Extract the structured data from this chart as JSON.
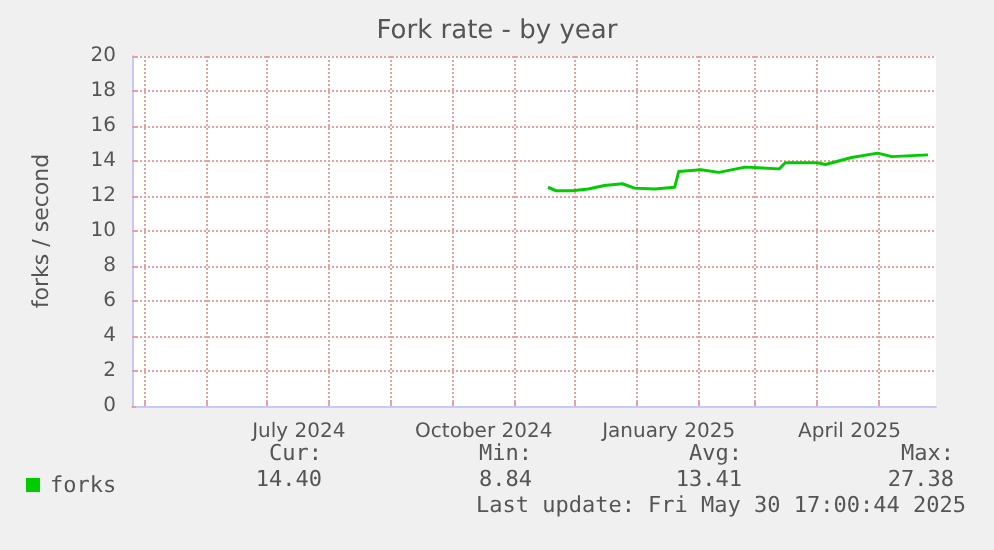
{
  "chart_data": {
    "type": "line",
    "title": "Fork rate - by year",
    "ylabel": "forks / second",
    "xlim": [
      "2024-04-25",
      "2025-05-30"
    ],
    "xticks": [
      {
        "value": "2024-05-01",
        "label": null
      },
      {
        "value": "2024-06-01",
        "label": null
      },
      {
        "value": "2024-07-01",
        "label": null
      },
      {
        "value": "2024-07-17",
        "label": "July 2024"
      },
      {
        "value": "2024-08-01",
        "label": null
      },
      {
        "value": "2024-09-01",
        "label": null
      },
      {
        "value": "2024-10-01",
        "label": null
      },
      {
        "value": "2024-10-17",
        "label": "October 2024"
      },
      {
        "value": "2024-11-01",
        "label": null
      },
      {
        "value": "2024-12-01",
        "label": null
      },
      {
        "value": "2025-01-01",
        "label": null
      },
      {
        "value": "2025-01-17",
        "label": "January 2025"
      },
      {
        "value": "2025-02-01",
        "label": null
      },
      {
        "value": "2025-03-01",
        "label": null
      },
      {
        "value": "2025-04-01",
        "label": null
      },
      {
        "value": "2025-04-17",
        "label": "April 2025"
      },
      {
        "value": "2025-05-01",
        "label": null
      }
    ],
    "ylim": [
      0,
      20
    ],
    "yticks": [
      0,
      2,
      4,
      6,
      8,
      10,
      12,
      14,
      16,
      18,
      20
    ],
    "grid": true,
    "legend": "bottom left",
    "marker": "none",
    "line_style": "solid",
    "series": [
      {
        "name": "forks",
        "color": "#00cc00",
        "x": [
          "2024-11-18",
          "2024-11-22",
          "2024-11-30",
          "2024-12-08",
          "2024-12-16",
          "2024-12-25",
          "2024-12-31",
          "2025-01-10",
          "2025-01-20",
          "2025-01-22",
          "2025-02-02",
          "2025-02-11",
          "2025-02-24",
          "2025-03-13",
          "2025-03-16",
          "2025-04-01",
          "2025-04-05",
          "2025-04-18",
          "2025-05-01",
          "2025-05-08",
          "2025-05-26"
        ],
        "values": [
          12.5,
          12.3,
          12.3,
          12.4,
          12.6,
          12.7,
          12.45,
          12.4,
          12.5,
          13.4,
          13.5,
          13.35,
          13.65,
          13.55,
          13.9,
          13.9,
          13.8,
          14.2,
          14.45,
          14.25,
          14.35
        ]
      }
    ],
    "annotations": [
      "Cur:",
      "14.40",
      "Min:",
      "8.84",
      "Avg:",
      "13.41",
      "Max:",
      "27.38",
      "Last update: Fri May 30 17:00:44 2025"
    ]
  }
}
